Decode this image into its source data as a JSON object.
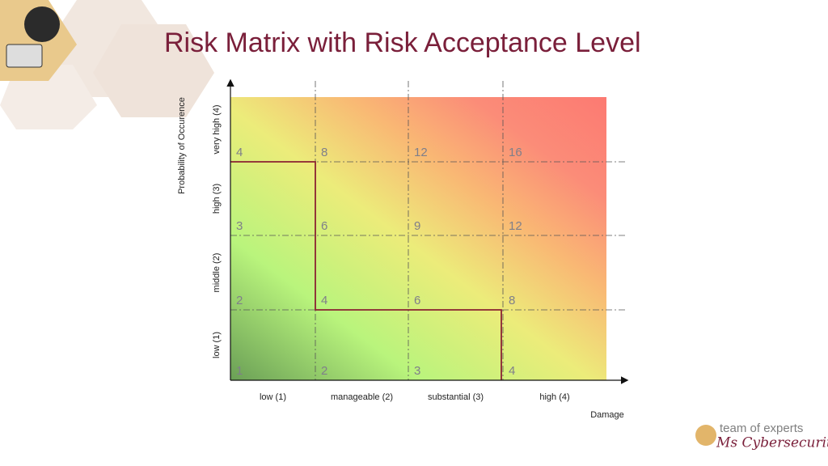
{
  "header": {
    "title": "Risk Matrix with Risk Acceptance Level"
  },
  "matrix": {
    "y_axis_title": "Probability of Occurence",
    "x_axis_title": "Damage",
    "columns": [
      "low (1)",
      "manageable (2)",
      "substantial (3)",
      "high (4)"
    ],
    "rows": [
      "low (1)",
      "middle (2)",
      "high (3)",
      "very high (4)"
    ],
    "scores": [
      [
        1,
        2,
        3,
        4
      ],
      [
        2,
        4,
        6,
        8
      ],
      [
        3,
        6,
        9,
        12
      ],
      [
        4,
        8,
        12,
        16
      ]
    ]
  },
  "logo": {
    "line1": "team of experts",
    "line2": "Ms Cybersecurity"
  }
}
